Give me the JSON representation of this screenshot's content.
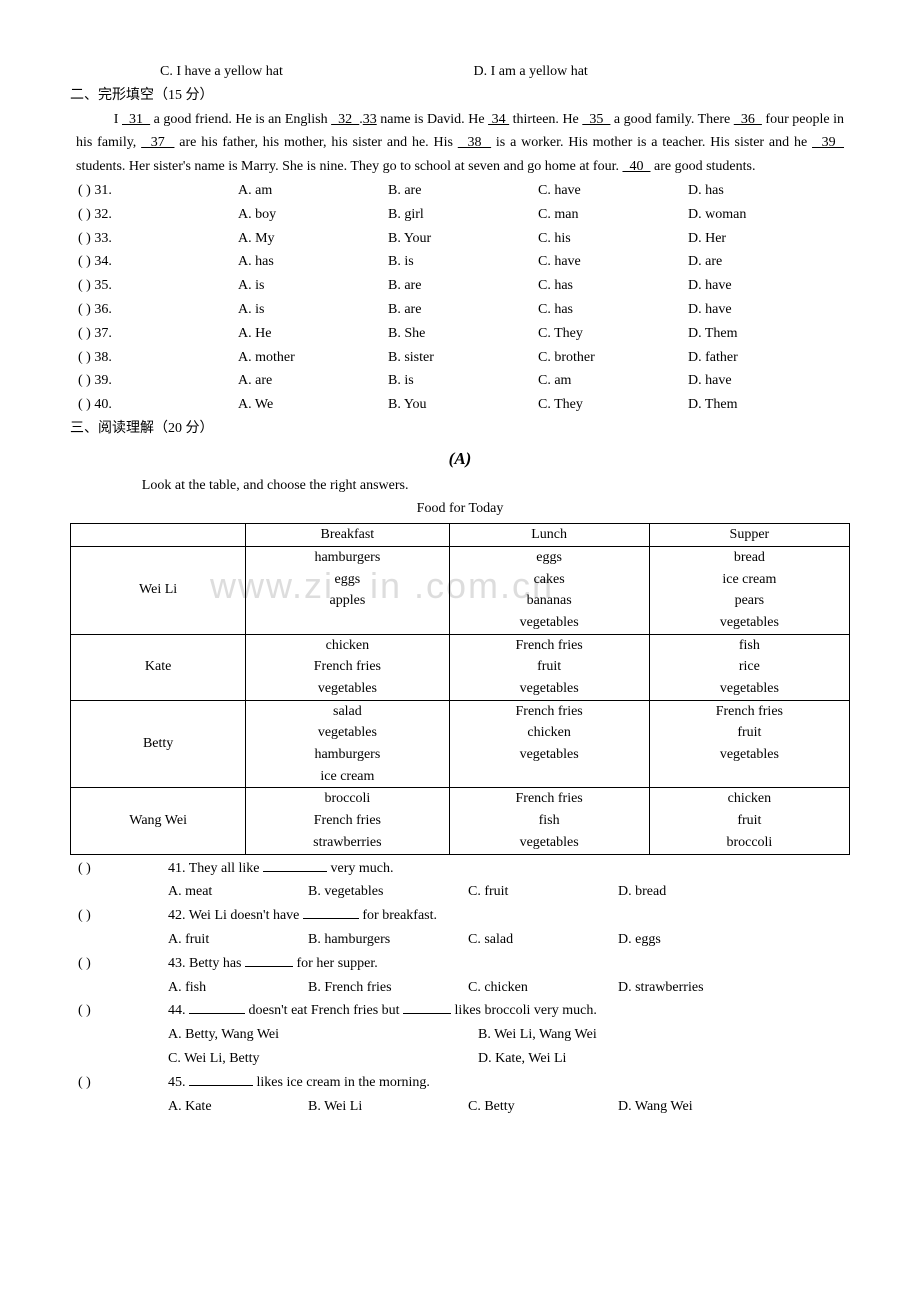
{
  "top": {
    "choiceC": "C. I have a yellow hat",
    "choiceD": "D. I am a yellow hat"
  },
  "section2": {
    "title": "二、完形填空（15 分）",
    "passage_parts": {
      "p1a": "I ",
      "b31": "  31  ",
      "p1b": " a good friend. He is an English ",
      "b32": "  32  ",
      "p1c": ".",
      "b33": "33",
      "p1d": " name is David. He ",
      "b34": " 34 ",
      "p1e": " thirteen. He ",
      "b35": "  35  ",
      "p1f": " a good family. There ",
      "b36": "  36  ",
      "p1g": " four people in his family, ",
      "b37": "  37  ",
      "p1h": " are his father, his mother, his sister and he. His ",
      "b38": "  38  ",
      "p1i": " is a worker. His mother is a teacher. His sister and he ",
      "b39": "  39  ",
      "p1j": " students. Her sister's name is Marry. She is nine. They go to school at seven and go home at four. ",
      "b40": "  40  ",
      "p1k": " are good students."
    },
    "mc": [
      {
        "n": "(    ) 31.",
        "a": "A. am",
        "b": "B. are",
        "c": "C. have",
        "d": "D. has"
      },
      {
        "n": "(    ) 32.",
        "a": "A. boy",
        "b": "B. girl",
        "c": "C. man",
        "d": "D. woman"
      },
      {
        "n": "(    ) 33.",
        "a": "A. My",
        "b": "B. Your",
        "c": "C. his",
        "d": "D. Her"
      },
      {
        "n": "(    ) 34.",
        "a": "A. has",
        "b": "B. is",
        "c": "C. have",
        "d": "D. are"
      },
      {
        "n": "(    ) 35.",
        "a": "A. is",
        "b": "B. are",
        "c": "C. has",
        "d": "D. have"
      },
      {
        "n": "(    ) 36.",
        "a": "A. is",
        "b": "B. are",
        "c": "C. has",
        "d": "D. have"
      },
      {
        "n": "(    ) 37.",
        "a": "A. He",
        "b": "B. She",
        "c": "C. They",
        "d": "D. Them"
      },
      {
        "n": "(    ) 38.",
        "a": "A. mother",
        "b": "B. sister",
        "c": "C. brother",
        "d": "D. father"
      },
      {
        "n": "(    ) 39.",
        "a": "A. are",
        "b": "B. is",
        "c": "C. am",
        "d": "D. have"
      },
      {
        "n": "(    ) 40.",
        "a": "A. We",
        "b": "B. You",
        "c": "C. They",
        "d": "D. Them"
      }
    ]
  },
  "section3": {
    "title": "三、阅读理解（20 分）",
    "label_a": "(A)",
    "intro": "Look at the table, and choose the right answers.",
    "table_title": "Food for Today",
    "headers": [
      "",
      "Breakfast",
      "Lunch",
      "Supper"
    ],
    "rows": [
      {
        "name": "Wei Li",
        "b": "hamburgers\neggs\napples",
        "l": "eggs\ncakes\nbananas\nvegetables",
        "s": "bread\nice cream\npears\nvegetables"
      },
      {
        "name": "Kate",
        "b": "chicken\nFrench fries\nvegetables",
        "l": "French fries\nfruit\nvegetables",
        "s": "fish\nrice\nvegetables"
      },
      {
        "name": "Betty",
        "b": "salad\nvegetables\nhamburgers\nice cream",
        "l": "French fries\nchicken\nvegetables",
        "s": "French fries\nfruit\nvegetables"
      },
      {
        "name": "Wang Wei",
        "b": "broccoli\nFrench fries\nstrawberries",
        "l": "French fries\nfish\nvegetables",
        "s": "chicken\nfruit\nbroccoli"
      }
    ],
    "questions": [
      {
        "paren": "(    )",
        "num": "41.",
        "stem": "They all like ________ very much.",
        "opts": [
          "A. meat",
          "B. vegetables",
          "C. fruit",
          "D. bread"
        ]
      },
      {
        "paren": "(    )",
        "num": "42.",
        "stem": "Wei Li doesn't have _______ for breakfast.",
        "opts": [
          "A. fruit",
          "B. hamburgers",
          "C. salad",
          "D. eggs"
        ]
      },
      {
        "paren": "(    )",
        "num": "43.",
        "stem": "Betty has ______ for her supper.",
        "opts": [
          "A. fish",
          "B. French fries",
          "C. chicken",
          "D. strawberries"
        ]
      },
      {
        "paren": "(    )",
        "num": "44.",
        "stem": "_______ doesn't eat French fries but ______ likes broccoli very much.",
        "opts2": [
          [
            "A. Betty, Wang Wei",
            "B. Wei Li, Wang Wei"
          ],
          [
            "C. Wei Li, Betty",
            "D. Kate, Wei Li"
          ]
        ]
      },
      {
        "paren": "(    )",
        "num": "45.",
        "stem": "________ likes ice cream in the morning.",
        "opts": [
          "A. Kate",
          "B. Wei Li",
          "C. Betty",
          "D. Wang Wei"
        ]
      }
    ]
  }
}
